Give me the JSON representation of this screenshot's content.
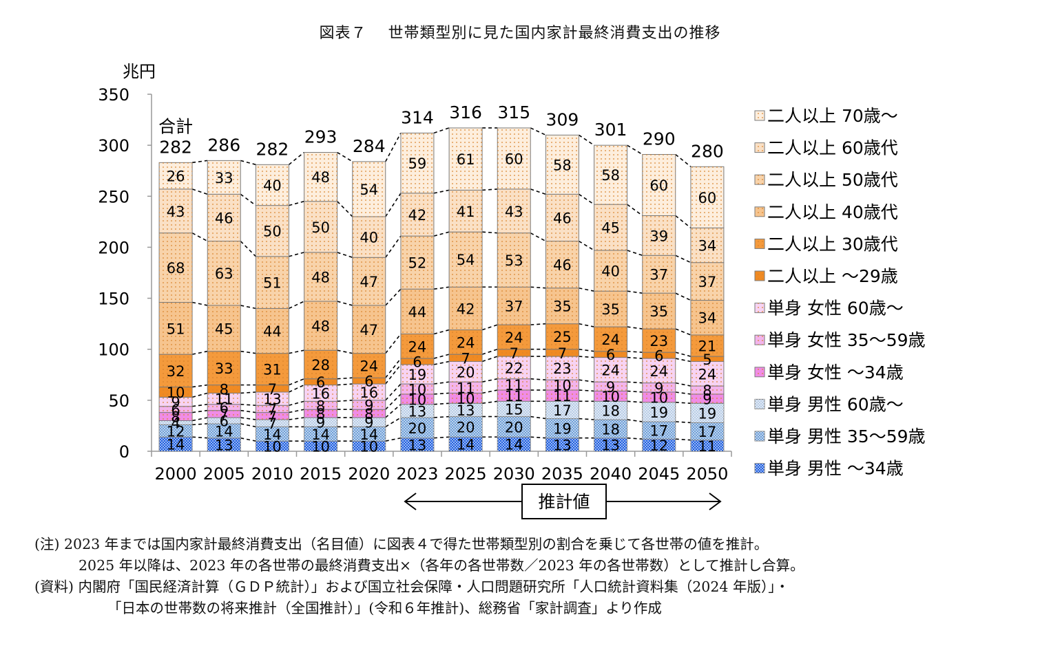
{
  "title": "図表７　 世帯類型別に見た国内家計最終消費支出の推移",
  "notes": {
    "line1": "(注) 2023 年までは国内家計最終消費支出（名目値）に図表４で得た世帯類型別の割合を乗じて各世帯の値を推計。",
    "line2": "2025 年以降は、2023 年の各世帯の最終消費支出×（各年の各世帯数／2023 年の各世帯数）として推計し合算。",
    "line3": "(資料) 内閣府「国民経済計算（ＧＤＰ統計）」および国立社会保障・人口問題研究所「人口統計資料集（2024 年版）」・",
    "line4": "「日本の世帯数の将来推計（全国推計）」(令和６年推計)、総務省「家計調査」より作成"
  },
  "chart_data": {
    "type": "bar",
    "stacked": true,
    "title": "図表７　 世帯類型別に見た国内家計最終消費支出の推移",
    "ylabel": "兆円",
    "ylim": [
      0,
      350
    ],
    "yticks": [
      0,
      50,
      100,
      150,
      200,
      250,
      300,
      350
    ],
    "categories": [
      "2000",
      "2005",
      "2010",
      "2015",
      "2020",
      "2023",
      "2025",
      "2030",
      "2035",
      "2040",
      "2045",
      "2050"
    ],
    "series": [
      {
        "name": "単身 男性 ～34歳",
        "legend": "単身  男性  ～34歳",
        "color": "#1f5fe0",
        "values": [
          14,
          13,
          10,
          10,
          10,
          13,
          14,
          14,
          13,
          13,
          12,
          11
        ]
      },
      {
        "name": "単身 男性 35～59歳",
        "legend": "単身  男性  35～59歳",
        "color": "#6f9fd8",
        "values": [
          12,
          14,
          14,
          14,
          14,
          20,
          20,
          20,
          19,
          18,
          17,
          17
        ]
      },
      {
        "name": "単身 男性 60歳～",
        "legend": "単身  男性  60歳～",
        "color": "#b9cde6",
        "values": [
          4,
          6,
          7,
          9,
          9,
          13,
          13,
          15,
          17,
          18,
          19,
          19
        ]
      },
      {
        "name": "単身 女性 ～34歳",
        "legend": "単身  女性  ～34歳",
        "color": "#f08ce6",
        "values": [
          8,
          7,
          7,
          8,
          8,
          10,
          10,
          11,
          11,
          10,
          10,
          9
        ]
      },
      {
        "name": "単身 女性 35～59歳",
        "legend": "単身  女性  35～59歳",
        "color": "#f3b4ec",
        "values": [
          6,
          6,
          7,
          8,
          9,
          10,
          11,
          11,
          10,
          9,
          9,
          8
        ]
      },
      {
        "name": "単身 女性 60歳～",
        "legend": "単身  女性  60歳～",
        "color": "#f7d3f3",
        "values": [
          9,
          11,
          13,
          16,
          16,
          19,
          20,
          22,
          23,
          24,
          24,
          24
        ]
      },
      {
        "name": "二人以上 ～29歳",
        "legend": "二人以上  ～29歳",
        "color": "#f08a22",
        "values": [
          10,
          8,
          7,
          6,
          6,
          6,
          7,
          7,
          7,
          6,
          6,
          5
        ]
      },
      {
        "name": "二人以上 30歳代",
        "legend": "二人以上  30歳代",
        "color": "#f49a3c",
        "values": [
          32,
          33,
          31,
          28,
          24,
          24,
          24,
          24,
          25,
          24,
          23,
          21
        ]
      },
      {
        "name": "二人以上 40歳代",
        "legend": "二人以上  40歳代",
        "color": "#f6c48e",
        "values": [
          51,
          45,
          44,
          48,
          47,
          44,
          42,
          37,
          35,
          35,
          35,
          34
        ]
      },
      {
        "name": "二人以上 50歳代",
        "legend": "二人以上  50歳代",
        "color": "#f8d3aa",
        "values": [
          68,
          63,
          51,
          48,
          47,
          52,
          54,
          53,
          46,
          40,
          37,
          37
        ]
      },
      {
        "name": "二人以上 60歳代",
        "legend": "二人以上  60歳代",
        "color": "#fae0c5",
        "values": [
          43,
          46,
          50,
          50,
          40,
          42,
          41,
          43,
          46,
          45,
          39,
          34
        ]
      },
      {
        "name": "二人以上 70歳～",
        "legend": "二人以上  70歳～",
        "color": "#fdeedd",
        "values": [
          26,
          33,
          40,
          48,
          54,
          59,
          61,
          60,
          58,
          58,
          60,
          60
        ]
      }
    ],
    "totals": [
      282,
      286,
      282,
      293,
      284,
      314,
      316,
      315,
      309,
      301,
      290,
      280
    ],
    "total_prefix": "合計",
    "annotation": "推計値"
  }
}
